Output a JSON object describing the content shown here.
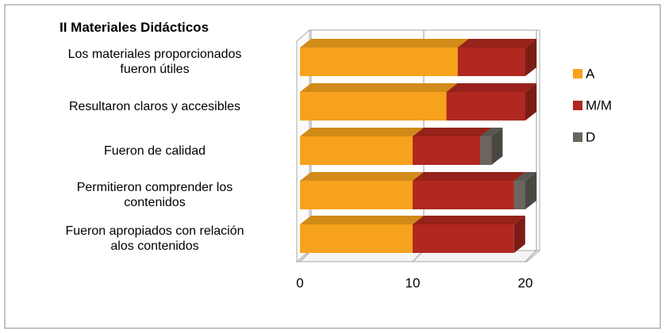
{
  "chart_data": {
    "type": "bar",
    "orientation": "horizontal",
    "stacked": true,
    "three_d": true,
    "title": "II Materiales Didácticos",
    "categories": [
      "Los materiales proporcionados\nfueron útiles",
      "Resultaron claros y accesibles",
      "Fueron de calidad",
      "Permitieron comprender los\ncontenidos",
      "Fueron apropiados con relación\nalos contenidos"
    ],
    "series": [
      {
        "name": "A",
        "color": "#f7a21d",
        "values": [
          14,
          13,
          10,
          10,
          10
        ]
      },
      {
        "name": "M/M",
        "color": "#b0281f",
        "values": [
          6,
          7,
          6,
          9,
          9
        ]
      },
      {
        "name": "D",
        "color": "#6b6560",
        "values": [
          0,
          0,
          1,
          1,
          0
        ]
      }
    ],
    "xlim": [
      0,
      20
    ],
    "xticks": [
      0,
      10,
      20
    ],
    "grid": true,
    "legend": "right"
  }
}
